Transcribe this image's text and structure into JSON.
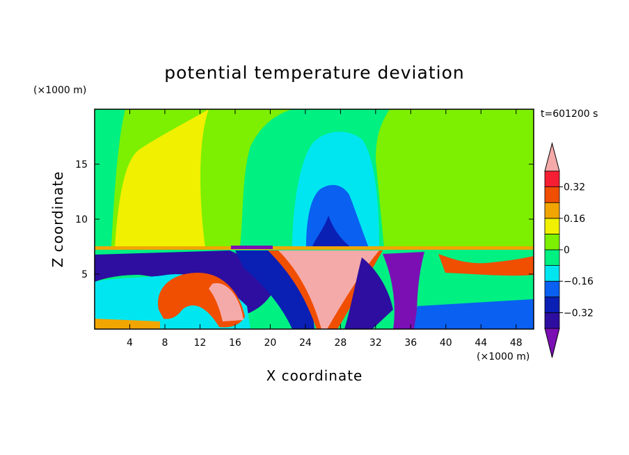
{
  "chart_data": {
    "type": "heatmap",
    "title": "potential temperature deviation",
    "time_label": "t=601200 s",
    "xlabel": "X coordinate",
    "ylabel": "Z coordinate",
    "x_unit": "(×1000 m)",
    "y_unit": "(×1000 m)",
    "xlim": [
      0,
      50
    ],
    "ylim": [
      0,
      20
    ],
    "x_ticks": [
      4,
      8,
      12,
      16,
      20,
      24,
      28,
      32,
      36,
      40,
      44,
      48
    ],
    "y_ticks": [
      5,
      10,
      15
    ],
    "colorbar": {
      "levels": [
        -0.4,
        -0.32,
        -0.24,
        -0.16,
        -0.08,
        0,
        0.08,
        0.16,
        0.24,
        0.32,
        0.4
      ],
      "labels": [
        "0.32",
        "0.16",
        "0",
        "−0.16",
        "−0.32"
      ],
      "label_values": [
        0.32,
        0.16,
        0,
        -0.16,
        -0.32
      ],
      "colors": [
        "#7b0fb4",
        "#2d0ea0",
        "#0a1fb4",
        "#0a60f0",
        "#00e6f0",
        "#00f082",
        "#7cf000",
        "#f0f000",
        "#f0a500",
        "#f04e00",
        "#f51e32",
        "#f5aaaa"
      ]
    }
  }
}
